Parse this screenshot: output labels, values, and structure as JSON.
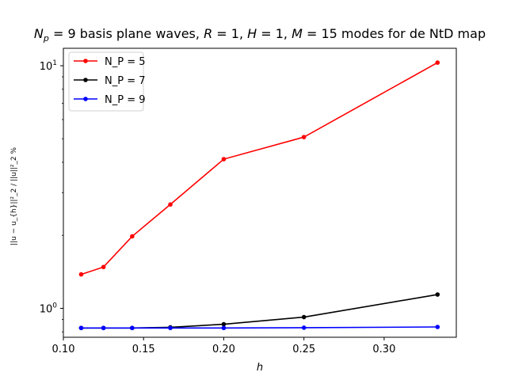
{
  "chart_data": {
    "type": "line",
    "title": "N_p = 9 basis plane waves, R = 1, H = 1, M = 15 modes for de NtD map",
    "xlabel": "h",
    "ylabel": "||u − u_{h}||²_2 / ||u||²_2 %",
    "xlim": [
      0.1,
      0.345
    ],
    "ylim": [
      0.76,
      11.8
    ],
    "yscale": "log",
    "x": [
      0.1111,
      0.125,
      0.1429,
      0.1667,
      0.2,
      0.25,
      0.3333
    ],
    "xticks": [
      "0.10",
      "0.15",
      "0.20",
      "0.25",
      "0.30"
    ],
    "yticks": [
      "10^0",
      "10^1"
    ],
    "legend_position": "top-left",
    "grid": false,
    "series": [
      {
        "name": "N_P = 5",
        "color": "#ff0000",
        "values": [
          1.38,
          1.48,
          1.98,
          2.68,
          4.12,
          5.08,
          10.3
        ]
      },
      {
        "name": "N_P = 7",
        "color": "#000000",
        "values": [
          0.83,
          0.83,
          0.83,
          0.835,
          0.86,
          0.92,
          1.14
        ]
      },
      {
        "name": "N_P = 9",
        "color": "#0000ff",
        "values": [
          0.83,
          0.83,
          0.83,
          0.83,
          0.83,
          0.832,
          0.838
        ]
      }
    ]
  }
}
